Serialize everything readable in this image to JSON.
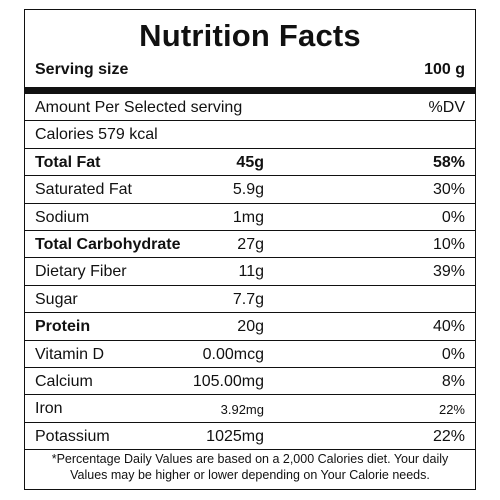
{
  "label": {
    "title": "Nutrition Facts",
    "serving_label": "Serving size",
    "serving_value": "100 g",
    "header_left": "Amount Per Selected serving",
    "header_right": "%DV",
    "calories": "Calories 579 kcal",
    "rows": [
      {
        "name": "Total Fat",
        "amount": "45g",
        "dv": "58%"
      },
      {
        "name": "Saturated Fat",
        "amount": "5.9g",
        "dv": "30%"
      },
      {
        "name": "Sodium",
        "amount": "1mg",
        "dv": "0%"
      },
      {
        "name": "Total Carbohydrate",
        "amount": "27g",
        "dv": "10%"
      },
      {
        "name": "Dietary Fiber",
        "amount": "11g",
        "dv": "39%"
      },
      {
        "name": "Sugar",
        "amount": "7.7g",
        "dv": ""
      },
      {
        "name": "Protein",
        "amount": "20g",
        "dv": "40%"
      },
      {
        "name": "Vitamin D",
        "amount": "0.00mcg",
        "dv": "0%"
      },
      {
        "name": "Calcium",
        "amount": "105.00mg",
        "dv": "8%"
      },
      {
        "name": "Iron",
        "amount": "3.92mg",
        "dv": "22%"
      },
      {
        "name": "Potassium",
        "amount": "1025mg",
        "dv": "22%"
      }
    ],
    "footnote": "*Percentage Daily Values are based on a 2,000 Calories diet. Your daily Values may be higher or lower depending on Your Calorie needs."
  }
}
